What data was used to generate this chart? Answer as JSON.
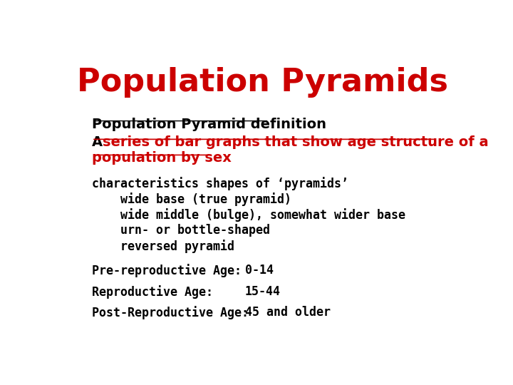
{
  "title": "Population Pyramids",
  "title_color": "#CC0000",
  "title_fontsize": 32,
  "background_color": "#FFFFFF",
  "line1": "Population Pyramid definition",
  "line2_black": "A ",
  "line2_red_1": "series of bar graphs that show age structure of a",
  "line2_red_2": "population by sex",
  "body_text": [
    "characteristics shapes of ‘pyramids’",
    "    wide base (true pyramid)",
    "    wide middle (bulge), somewhat wider base",
    "    urn- or bottle-shaped",
    "    reversed pyramid"
  ],
  "age_label1": "Pre-reproductive Age:",
  "age_val1": "0-14",
  "age_label2": "Reproductive Age:",
  "age_val2": "15-44",
  "age_label3": "Post-Reproductive Age:",
  "age_val3": "45 and older",
  "body_fontsize": 13,
  "age_fontsize": 13,
  "red_color": "#CC0000",
  "black_color": "#000000"
}
